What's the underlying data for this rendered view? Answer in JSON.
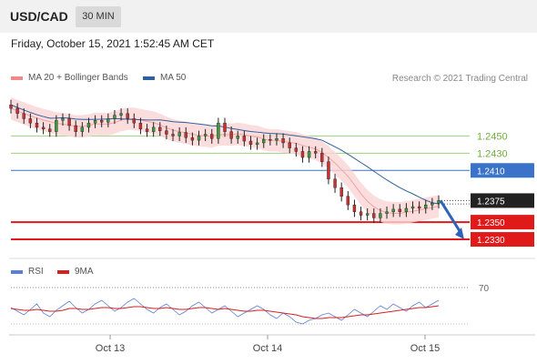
{
  "header": {
    "symbol": "USD/CAD",
    "timeframe": "30 MIN"
  },
  "datetime": "Friday, October 15, 2021 1:52:45 AM CET",
  "legend_price": [
    {
      "label": "MA 20 + Bollinger Bands",
      "color": "#f08a8a"
    },
    {
      "label": "MA 50",
      "color": "#2f5f9e"
    }
  ],
  "credit": "Research © 2021 Trading Central",
  "legend_rsi": [
    {
      "label": "RSI",
      "color": "#5b7fd6"
    },
    {
      "label": "9MA",
      "color": "#d62020"
    }
  ],
  "chart_data": [
    {
      "type": "candlestick",
      "x_ticks": [
        "Oct 13",
        "Oct 14",
        "Oct 15"
      ],
      "levels": [
        {
          "value": 1.245,
          "label": "1.2450",
          "style": "green-line"
        },
        {
          "value": 1.243,
          "label": "1.2430",
          "style": "green-line"
        },
        {
          "value": 1.241,
          "label": "1.2410",
          "style": "blue-line"
        },
        {
          "value": 1.2375,
          "label": "1.2375",
          "style": "last-price"
        },
        {
          "value": 1.235,
          "label": "1.2350",
          "style": "red-line"
        },
        {
          "value": 1.233,
          "label": "1.2330",
          "style": "red-line"
        }
      ],
      "close_path": [
        1.2482,
        1.2476,
        1.247,
        1.2465,
        1.246,
        1.2458,
        1.2455,
        1.2468,
        1.247,
        1.2462,
        1.2455,
        1.246,
        1.2465,
        1.2468,
        1.2466,
        1.247,
        1.2474,
        1.2476,
        1.247,
        1.2465,
        1.2458,
        1.2455,
        1.246,
        1.2456,
        1.2452,
        1.245,
        1.2454,
        1.2448,
        1.2445,
        1.245,
        1.2452,
        1.2447,
        1.2465,
        1.2455,
        1.2447,
        1.245,
        1.2444,
        1.244,
        1.2442,
        1.2446,
        1.2445,
        1.2447,
        1.2442,
        1.2436,
        1.2432,
        1.2425,
        1.2432,
        1.243,
        1.242,
        1.24,
        1.239,
        1.238,
        1.237,
        1.2362,
        1.2358,
        1.236,
        1.2355,
        1.236,
        1.2362,
        1.2365,
        1.2362,
        1.2366,
        1.2368,
        1.2366,
        1.237,
        1.2372,
        1.2375
      ],
      "forecast_arrow": {
        "from": 1.2375,
        "to": 1.233
      },
      "ylim": [
        1.231,
        1.25
      ]
    },
    {
      "type": "line",
      "title": "RSI",
      "y_ticks": [
        70
      ],
      "series": [
        {
          "name": "RSI",
          "values": [
            48,
            44,
            40,
            46,
            52,
            42,
            38,
            45,
            50,
            55,
            48,
            42,
            46,
            52,
            56,
            50,
            44,
            48,
            54,
            58,
            52,
            46,
            42,
            48,
            52,
            46,
            40,
            44,
            50,
            54,
            48,
            42,
            46,
            50,
            44,
            38,
            42,
            46,
            50,
            46,
            40,
            36,
            42,
            38,
            32,
            30,
            34,
            36,
            40,
            42,
            38,
            34,
            40,
            46,
            42,
            38,
            44,
            50,
            46,
            52,
            48,
            44,
            50,
            54,
            48,
            52,
            56
          ]
        },
        {
          "name": "9MA",
          "values": [
            47,
            46,
            45,
            45,
            46,
            45,
            44,
            44,
            45,
            47,
            47,
            46,
            46,
            47,
            48,
            48,
            47,
            47,
            48,
            49,
            49,
            48,
            47,
            47,
            48,
            47,
            46,
            46,
            47,
            48,
            48,
            47,
            46,
            47,
            46,
            45,
            44,
            44,
            45,
            45,
            44,
            43,
            42,
            41,
            40,
            38,
            37,
            36,
            36,
            37,
            37,
            37,
            38,
            39,
            40,
            40,
            41,
            42,
            43,
            44,
            45,
            46,
            47,
            48,
            48,
            49,
            50
          ]
        }
      ],
      "ylim": [
        20,
        80
      ]
    }
  ]
}
